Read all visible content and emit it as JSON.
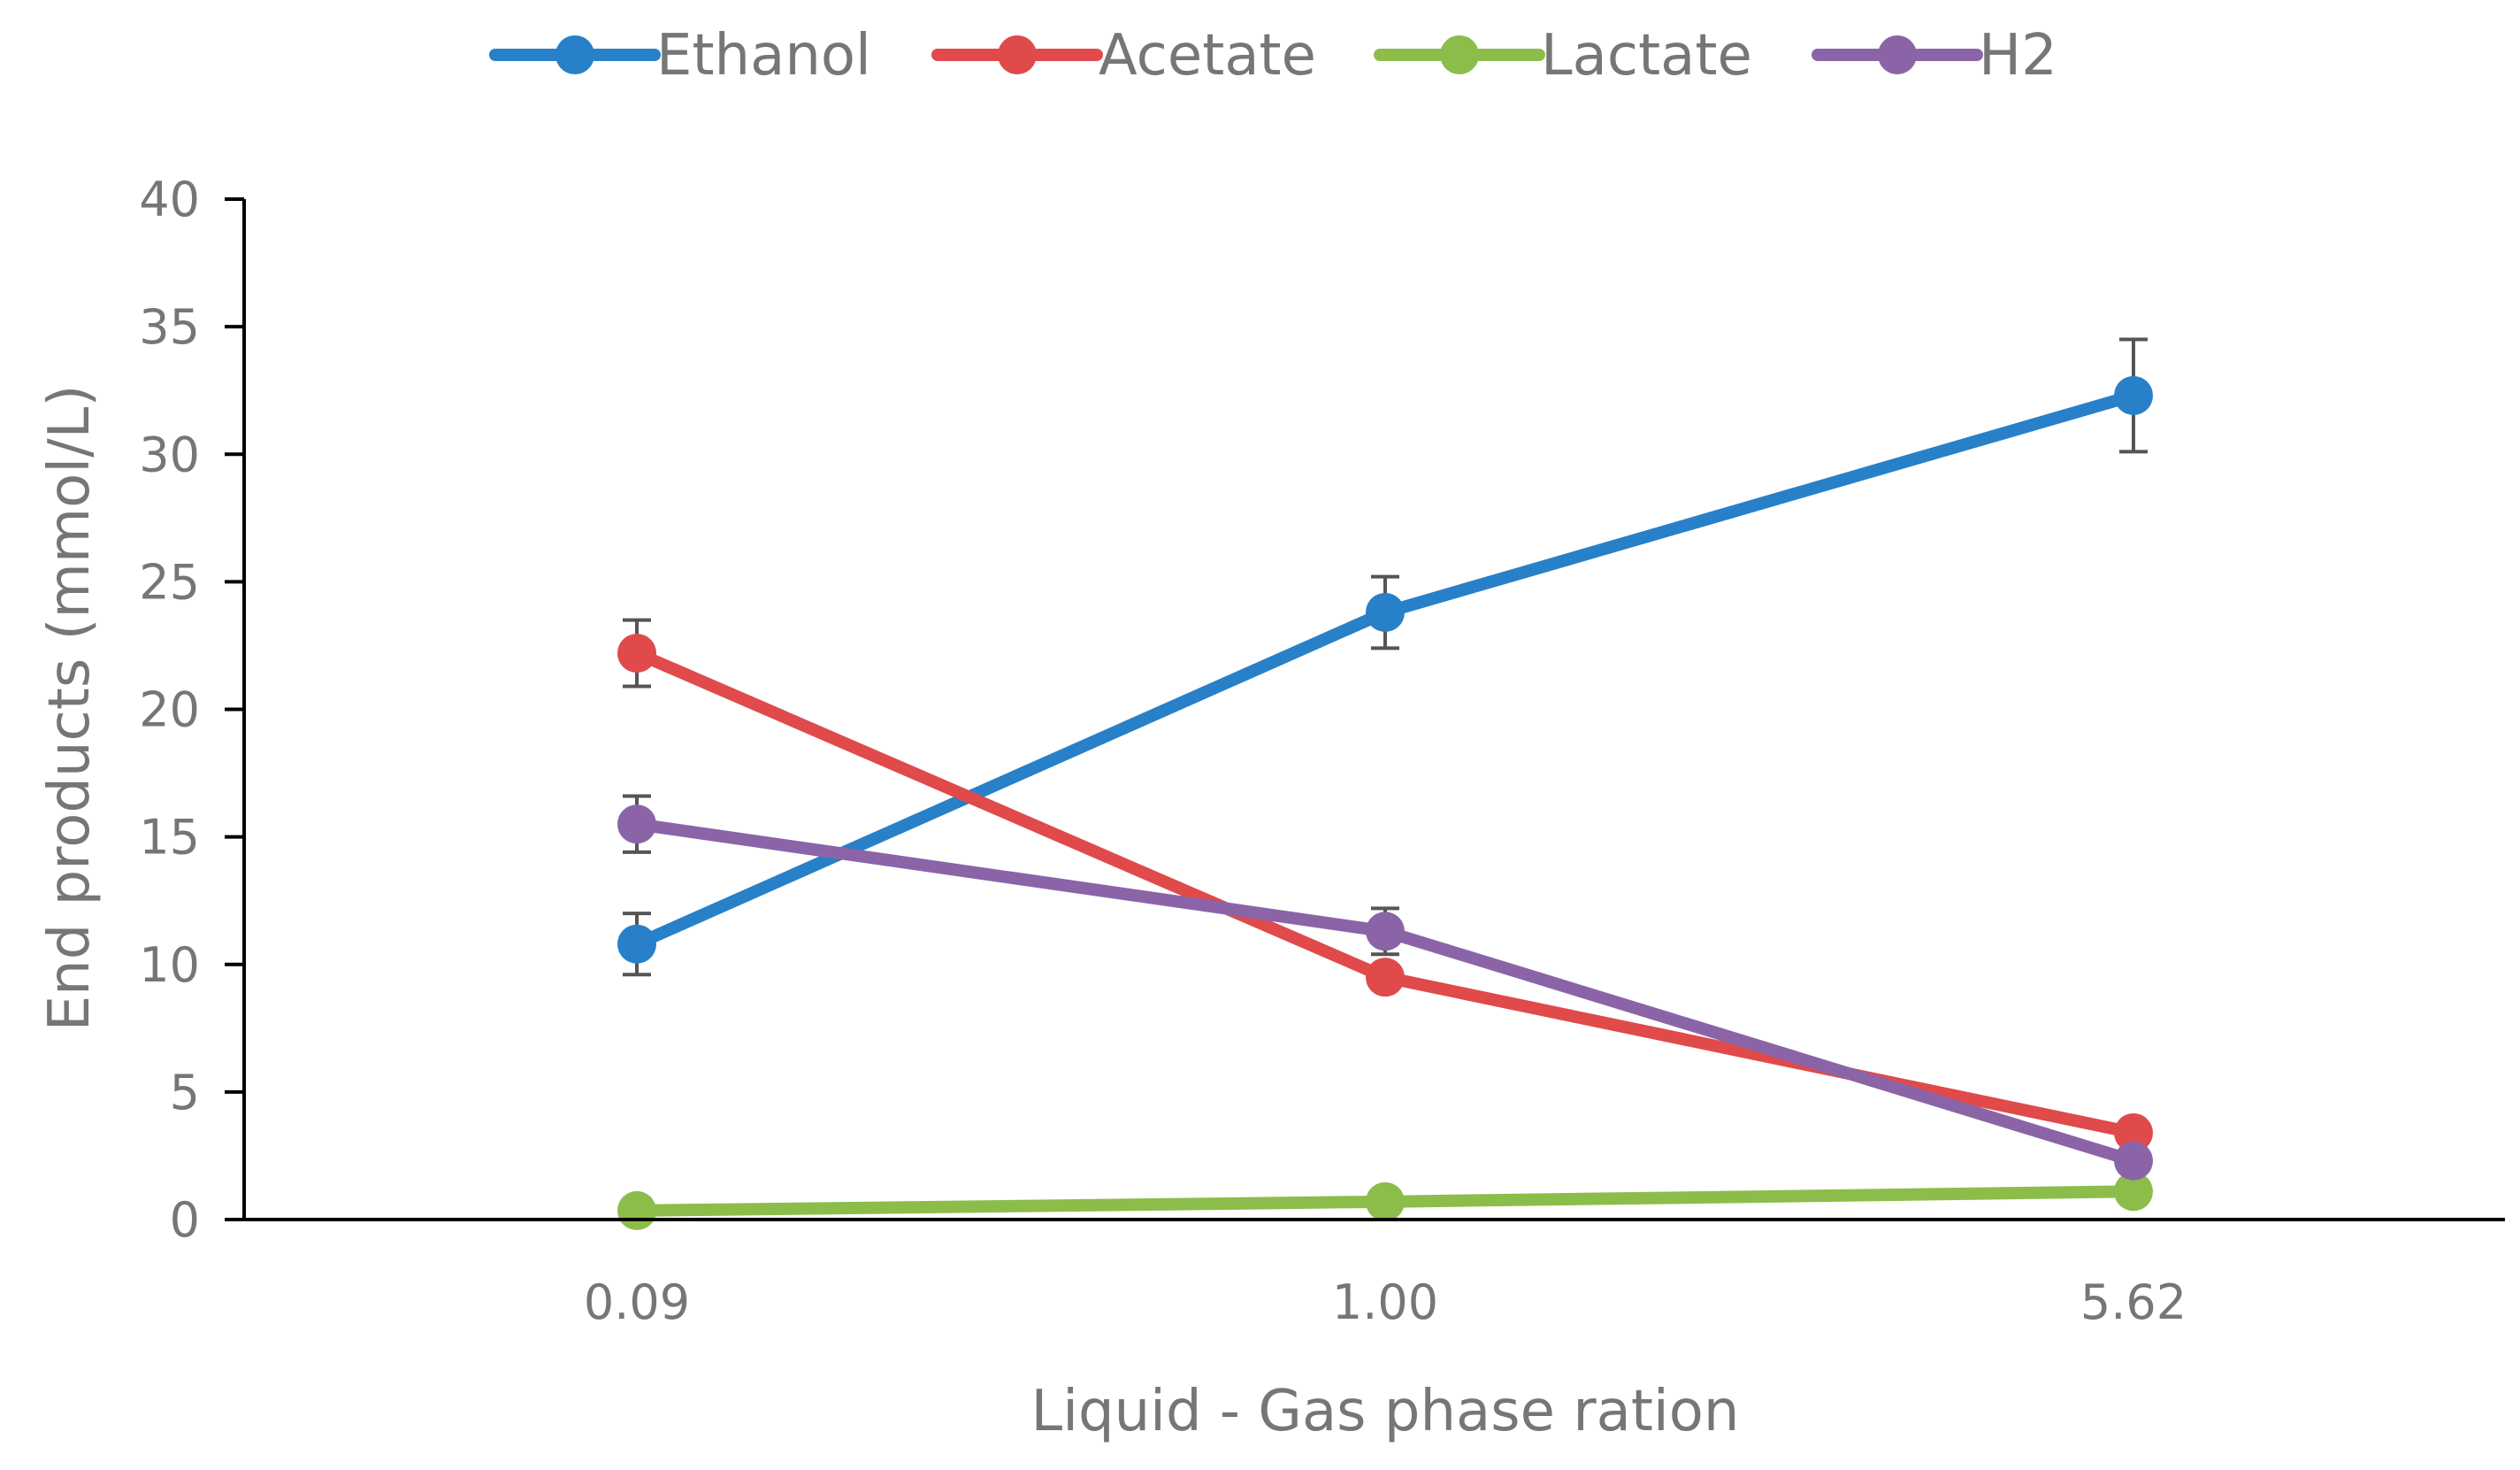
{
  "chart_data": {
    "type": "line",
    "title": "",
    "xlabel": "Liquid - Gas phase ration",
    "ylabel": "End products (mmol/L)",
    "categories": [
      "0.09",
      "1.00",
      "5.62"
    ],
    "ylim": [
      0,
      40
    ],
    "yticks": [
      "0",
      "5",
      "10",
      "15",
      "20",
      "25",
      "30",
      "35",
      "40"
    ],
    "grid": false,
    "legend_position": "top",
    "series": [
      {
        "name": "Ethanol",
        "color": "#2880C8",
        "values": [
          10.8,
          23.8,
          32.3
        ],
        "error": [
          1.2,
          1.4,
          2.2
        ]
      },
      {
        "name": "Acetate",
        "color": "#E04A4A",
        "values": [
          22.2,
          9.5,
          3.4
        ],
        "error": [
          1.3,
          null,
          null
        ]
      },
      {
        "name": "Lactate",
        "color": "#8CBD4A",
        "values": [
          0.35,
          0.7,
          1.1
        ],
        "error": [
          null,
          null,
          null
        ]
      },
      {
        "name": "H2",
        "color": "#8B64A8",
        "values": [
          15.5,
          11.3,
          2.3
        ],
        "error": [
          1.1,
          0.9,
          null
        ]
      }
    ]
  }
}
